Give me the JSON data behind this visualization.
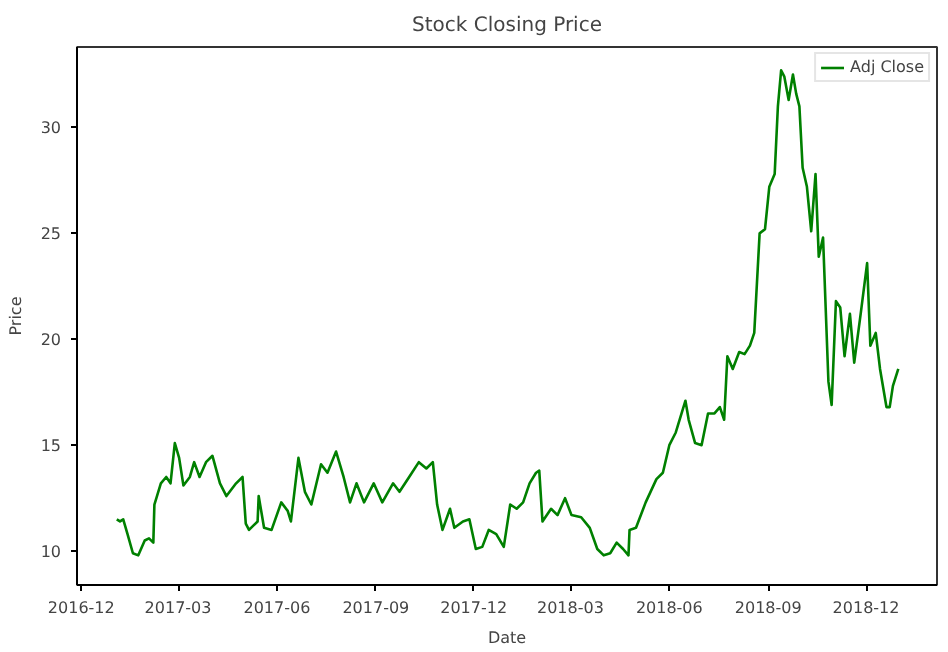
{
  "chart_data": {
    "type": "line",
    "title": "Stock Closing Price",
    "xlabel": "Date",
    "ylabel": "Price",
    "legend": "top right",
    "grid": false,
    "line_style": "solid",
    "xlim": [
      "2016-11-27",
      "2019-02-05"
    ],
    "ylim": [
      8.4,
      33.8
    ],
    "xticks": [
      {
        "value": "2016-12-01",
        "label": "2016-12"
      },
      {
        "value": "2017-03-01",
        "label": "2017-03"
      },
      {
        "value": "2017-06-01",
        "label": "2017-06"
      },
      {
        "value": "2017-09-01",
        "label": "2017-09"
      },
      {
        "value": "2017-12-01",
        "label": "2017-12"
      },
      {
        "value": "2018-03-01",
        "label": "2018-03"
      },
      {
        "value": "2018-06-01",
        "label": "2018-06"
      },
      {
        "value": "2018-09-01",
        "label": "2018-09"
      },
      {
        "value": "2018-12-01",
        "label": "2018-12"
      }
    ],
    "yticks": [
      10,
      15,
      20,
      25,
      30
    ],
    "series": [
      {
        "name": "Adj Close",
        "color": "#008000",
        "x": [
          "2017-01-03",
          "2017-01-06",
          "2017-01-09",
          "2017-01-13",
          "2017-01-18",
          "2017-01-23",
          "2017-01-29",
          "2017-02-02",
          "2017-02-06",
          "2017-02-07",
          "2017-02-13",
          "2017-02-18",
          "2017-02-22",
          "2017-02-26",
          "2017-03-02",
          "2017-03-06",
          "2017-03-12",
          "2017-03-16",
          "2017-03-21",
          "2017-03-27",
          "2017-04-02",
          "2017-04-09",
          "2017-04-15",
          "2017-04-24",
          "2017-04-30",
          "2017-05-03",
          "2017-05-06",
          "2017-05-14",
          "2017-05-15",
          "2017-05-20",
          "2017-05-27",
          "2017-06-05",
          "2017-06-11",
          "2017-06-14",
          "2017-06-21",
          "2017-06-27",
          "2017-07-03",
          "2017-07-12",
          "2017-07-18",
          "2017-07-26",
          "2017-08-02",
          "2017-08-08",
          "2017-08-14",
          "2017-08-21",
          "2017-08-30",
          "2017-09-07",
          "2017-09-17",
          "2017-09-23",
          "2017-10-02",
          "2017-10-11",
          "2017-10-18",
          "2017-10-24",
          "2017-10-28",
          "2017-11-02",
          "2017-11-09",
          "2017-11-13",
          "2017-11-21",
          "2017-11-27",
          "2017-12-03",
          "2017-12-09",
          "2017-12-15",
          "2017-12-22",
          "2017-12-29",
          "2018-01-04",
          "2018-01-10",
          "2018-01-16",
          "2018-01-22",
          "2018-01-28",
          "2018-01-31",
          "2018-02-03",
          "2018-02-11",
          "2018-02-17",
          "2018-02-24",
          "2018-03-02",
          "2018-03-11",
          "2018-03-19",
          "2018-03-26",
          "2018-04-01",
          "2018-04-07",
          "2018-04-13",
          "2018-04-19",
          "2018-04-24",
          "2018-04-25",
          "2018-05-01",
          "2018-05-10",
          "2018-05-20",
          "2018-05-26",
          "2018-06-01",
          "2018-06-07",
          "2018-06-16",
          "2018-06-19",
          "2018-06-25",
          "2018-07-01",
          "2018-07-07",
          "2018-07-13",
          "2018-07-18",
          "2018-07-22",
          "2018-07-25",
          "2018-07-30",
          "2018-08-05",
          "2018-08-10",
          "2018-08-15",
          "2018-08-19",
          "2018-08-24",
          "2018-08-29",
          "2018-09-02",
          "2018-09-07",
          "2018-09-10",
          "2018-09-13",
          "2018-09-16",
          "2018-09-20",
          "2018-09-24",
          "2018-09-27",
          "2018-09-30",
          "2018-10-03",
          "2018-10-07",
          "2018-10-11",
          "2018-10-15",
          "2018-10-18",
          "2018-10-22",
          "2018-10-27",
          "2018-10-30",
          "2018-11-03",
          "2018-11-07",
          "2018-11-11",
          "2018-11-16",
          "2018-11-20",
          "2018-11-26",
          "2018-12-02",
          "2018-12-05",
          "2018-12-10",
          "2018-12-14",
          "2018-12-20",
          "2018-12-23",
          "2018-12-26",
          "2018-12-31"
        ],
        "values": [
          11.5,
          11.4,
          11.5,
          10.8,
          9.9,
          9.8,
          10.5,
          10.6,
          10.4,
          12.2,
          13.2,
          13.5,
          13.2,
          15.1,
          14.4,
          13.1,
          13.5,
          14.2,
          13.5,
          14.2,
          14.5,
          13.2,
          12.6,
          13.2,
          13.5,
          11.3,
          11.0,
          11.4,
          12.6,
          11.1,
          11.0,
          12.3,
          11.9,
          11.4,
          14.4,
          12.8,
          12.2,
          14.1,
          13.7,
          14.7,
          13.5,
          12.3,
          13.2,
          12.3,
          13.2,
          12.3,
          13.2,
          12.8,
          13.5,
          14.2,
          13.9,
          14.2,
          12.2,
          11.0,
          12.0,
          11.1,
          11.4,
          11.5,
          10.1,
          10.2,
          11.0,
          10.8,
          10.2,
          12.2,
          12.0,
          12.3,
          13.2,
          13.7,
          13.8,
          11.4,
          12.0,
          11.7,
          12.5,
          11.7,
          11.6,
          11.1,
          10.1,
          9.8,
          9.9,
          10.4,
          10.1,
          9.8,
          11.0,
          11.1,
          12.3,
          13.4,
          13.7,
          15.0,
          15.6,
          17.1,
          16.2,
          15.1,
          15.0,
          16.5,
          16.5,
          16.8,
          16.2,
          19.2,
          18.6,
          19.4,
          19.3,
          19.7,
          20.3,
          25.0,
          25.2,
          27.2,
          27.8,
          31.0,
          32.7,
          32.4,
          31.3,
          32.5,
          31.6,
          31.0,
          28.1,
          27.2,
          25.1,
          27.8,
          23.9,
          24.8,
          18.0,
          16.9,
          21.8,
          21.5,
          19.2,
          21.2,
          18.9,
          21.2,
          23.6,
          19.7,
          20.3,
          18.6,
          16.8,
          16.8,
          17.8,
          18.6
        ]
      }
    ]
  }
}
